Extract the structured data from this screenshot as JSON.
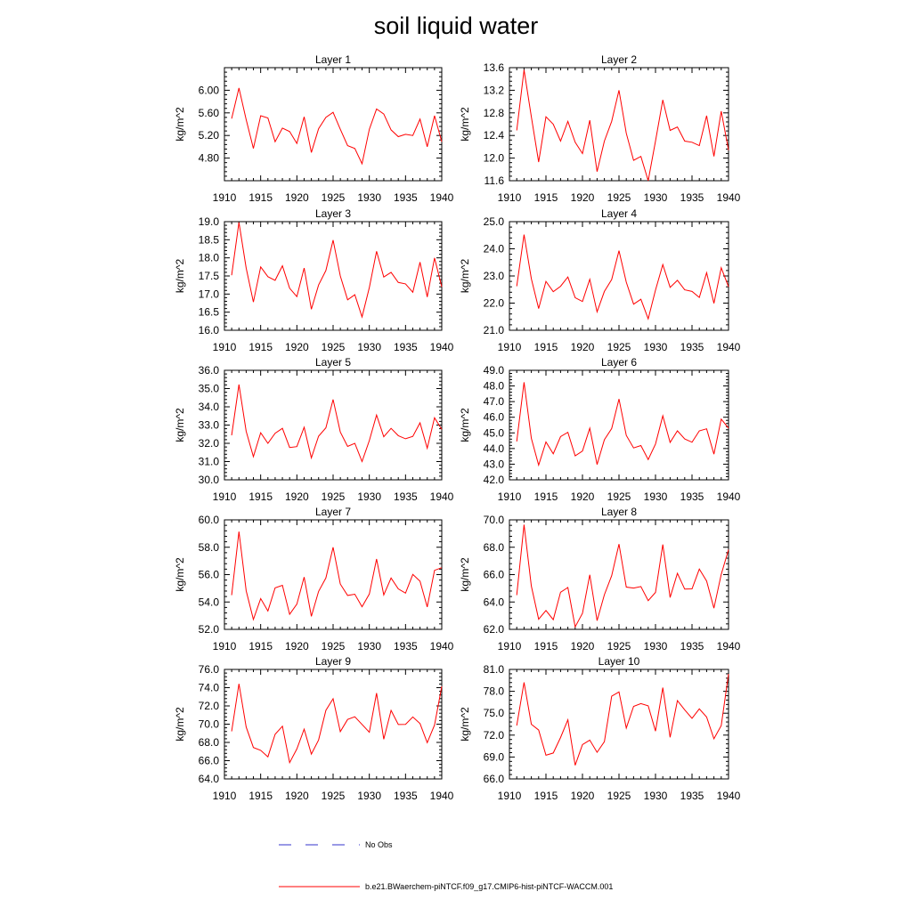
{
  "title": "soil liquid water",
  "legend": {
    "placement": "bottom",
    "entries": [
      {
        "label": "No Obs",
        "color": "#3333cc",
        "style": "dashed"
      },
      {
        "label": "b.e21.BWaerchem-piNTCF.f09_g17.CMIP6-hist-piNTCF-WACCM.001",
        "color": "#ff0000",
        "style": "solid"
      }
    ]
  },
  "chart_data": [
    {
      "type": "line",
      "title": "Layer 1",
      "ylabel": "kg/m^2",
      "xlim": [
        1910,
        1940
      ],
      "ylim": [
        4.4,
        6.4
      ],
      "xticks": [
        "1910",
        "1915",
        "1920",
        "1925",
        "1930",
        "1935",
        "1940"
      ],
      "yticks": [
        "4.80",
        "5.20",
        "5.60",
        "6.00"
      ],
      "ytick_values": [
        4.8,
        5.2,
        5.6,
        6.0
      ],
      "x": [
        1911,
        1912,
        1913,
        1914,
        1915,
        1916,
        1917,
        1918,
        1919,
        1920,
        1921,
        1922,
        1923,
        1924,
        1925,
        1926,
        1927,
        1928,
        1929,
        1930,
        1931,
        1932,
        1933,
        1934,
        1935,
        1936,
        1937,
        1938,
        1939,
        1940
      ],
      "series": [
        {
          "color": "#ff0000",
          "values": [
            5.5,
            6.04,
            5.48,
            4.97,
            5.55,
            5.51,
            5.09,
            5.33,
            5.27,
            5.06,
            5.53,
            4.9,
            5.32,
            5.52,
            5.61,
            5.31,
            5.02,
            4.97,
            4.7,
            5.31,
            5.67,
            5.58,
            5.3,
            5.18,
            5.22,
            5.2,
            5.49,
            5.0,
            5.55,
            5.09
          ]
        }
      ]
    },
    {
      "type": "line",
      "title": "Layer 2",
      "ylabel": "kg/m^2",
      "xlim": [
        1910,
        1940
      ],
      "ylim": [
        11.6,
        13.6
      ],
      "xticks": [
        "1910",
        "1915",
        "1920",
        "1925",
        "1930",
        "1935",
        "1940"
      ],
      "yticks": [
        "11.6",
        "12.0",
        "12.4",
        "12.8",
        "13.2",
        "13.6"
      ],
      "ytick_values": [
        11.6,
        12.0,
        12.4,
        12.8,
        13.2,
        13.6
      ],
      "x": [
        1911,
        1912,
        1913,
        1914,
        1915,
        1916,
        1917,
        1918,
        1919,
        1920,
        1921,
        1922,
        1923,
        1924,
        1925,
        1926,
        1927,
        1928,
        1929,
        1930,
        1931,
        1932,
        1933,
        1934,
        1935,
        1936,
        1937,
        1938,
        1939,
        1940
      ],
      "series": [
        {
          "color": "#ff0000",
          "values": [
            12.49,
            13.56,
            12.73,
            11.93,
            12.73,
            12.6,
            12.3,
            12.65,
            12.28,
            12.08,
            12.67,
            11.76,
            12.3,
            12.65,
            13.2,
            12.44,
            11.96,
            12.03,
            11.6,
            12.3,
            13.03,
            12.49,
            12.55,
            12.3,
            12.28,
            12.22,
            12.75,
            12.03,
            12.83,
            12.14
          ]
        }
      ]
    },
    {
      "type": "line",
      "title": "Layer 3",
      "ylabel": "kg/m^2",
      "xlim": [
        1910,
        1940
      ],
      "ylim": [
        16.0,
        19.0
      ],
      "xticks": [
        "1910",
        "1915",
        "1920",
        "1925",
        "1930",
        "1935",
        "1940"
      ],
      "yticks": [
        "16.0",
        "16.5",
        "17.0",
        "17.5",
        "18.0",
        "18.5",
        "19.0"
      ],
      "ytick_values": [
        16.0,
        16.5,
        17.0,
        17.5,
        18.0,
        18.5,
        19.0
      ],
      "x": [
        1911,
        1912,
        1913,
        1914,
        1915,
        1916,
        1917,
        1918,
        1919,
        1920,
        1921,
        1922,
        1923,
        1924,
        1925,
        1926,
        1927,
        1928,
        1929,
        1930,
        1931,
        1932,
        1933,
        1934,
        1935,
        1936,
        1937,
        1938,
        1939,
        1940
      ],
      "series": [
        {
          "color": "#ff0000",
          "values": [
            17.52,
            18.98,
            17.72,
            16.78,
            17.75,
            17.48,
            17.38,
            17.78,
            17.16,
            16.93,
            17.72,
            16.58,
            17.25,
            17.65,
            18.49,
            17.5,
            16.84,
            16.98,
            16.37,
            17.18,
            18.18,
            17.47,
            17.6,
            17.32,
            17.28,
            17.05,
            17.88,
            16.92,
            18.0,
            17.2
          ]
        }
      ]
    },
    {
      "type": "line",
      "title": "Layer 4",
      "ylabel": "kg/m^2",
      "xlim": [
        1910,
        1940
      ],
      "ylim": [
        21.0,
        25.0
      ],
      "xticks": [
        "1910",
        "1915",
        "1920",
        "1925",
        "1930",
        "1935",
        "1940"
      ],
      "yticks": [
        "21.0",
        "22.0",
        "23.0",
        "24.0",
        "25.0"
      ],
      "ytick_values": [
        21.0,
        22.0,
        23.0,
        24.0,
        25.0
      ],
      "x": [
        1911,
        1912,
        1913,
        1914,
        1915,
        1916,
        1917,
        1918,
        1919,
        1920,
        1921,
        1922,
        1923,
        1924,
        1925,
        1926,
        1927,
        1928,
        1929,
        1930,
        1931,
        1932,
        1933,
        1934,
        1935,
        1936,
        1937,
        1938,
        1939,
        1940
      ],
      "series": [
        {
          "color": "#ff0000",
          "values": [
            22.62,
            24.52,
            22.9,
            21.8,
            22.8,
            22.42,
            22.62,
            22.96,
            22.2,
            22.06,
            22.88,
            21.68,
            22.43,
            22.87,
            23.93,
            22.77,
            21.96,
            22.14,
            21.42,
            22.48,
            23.42,
            22.58,
            22.84,
            22.49,
            22.43,
            22.21,
            23.12,
            21.99,
            23.3,
            22.6
          ]
        }
      ]
    },
    {
      "type": "line",
      "title": "Layer 5",
      "ylabel": "kg/m^2",
      "xlim": [
        1910,
        1940
      ],
      "ylim": [
        30.0,
        36.0
      ],
      "xticks": [
        "1910",
        "1915",
        "1920",
        "1925",
        "1930",
        "1935",
        "1940"
      ],
      "yticks": [
        "30.0",
        "31.0",
        "32.0",
        "33.0",
        "34.0",
        "35.0",
        "36.0"
      ],
      "ytick_values": [
        30.0,
        31.0,
        32.0,
        33.0,
        34.0,
        35.0,
        36.0
      ],
      "x": [
        1911,
        1912,
        1913,
        1914,
        1915,
        1916,
        1917,
        1918,
        1919,
        1920,
        1921,
        1922,
        1923,
        1924,
        1925,
        1926,
        1927,
        1928,
        1929,
        1930,
        1931,
        1932,
        1933,
        1934,
        1935,
        1936,
        1937,
        1938,
        1939,
        1940
      ],
      "series": [
        {
          "color": "#ff0000",
          "values": [
            32.44,
            35.22,
            32.66,
            31.27,
            32.58,
            32.0,
            32.55,
            32.82,
            31.77,
            31.82,
            32.88,
            31.2,
            32.39,
            32.85,
            34.4,
            32.62,
            31.83,
            32.0,
            31.0,
            32.15,
            33.55,
            32.36,
            32.82,
            32.42,
            32.25,
            32.38,
            33.12,
            31.73,
            33.4,
            32.76
          ]
        }
      ]
    },
    {
      "type": "line",
      "title": "Layer 6",
      "ylabel": "kg/m^2",
      "xlim": [
        1910,
        1940
      ],
      "ylim": [
        42.0,
        49.0
      ],
      "xticks": [
        "1910",
        "1915",
        "1920",
        "1925",
        "1930",
        "1935",
        "1940"
      ],
      "yticks": [
        "42.0",
        "43.0",
        "44.0",
        "45.0",
        "46.0",
        "47.0",
        "48.0",
        "49.0"
      ],
      "ytick_values": [
        42.0,
        43.0,
        44.0,
        45.0,
        46.0,
        47.0,
        48.0,
        49.0
      ],
      "x": [
        1911,
        1912,
        1913,
        1914,
        1915,
        1916,
        1917,
        1918,
        1919,
        1920,
        1921,
        1922,
        1923,
        1924,
        1925,
        1926,
        1927,
        1928,
        1929,
        1930,
        1931,
        1932,
        1933,
        1934,
        1935,
        1936,
        1937,
        1938,
        1939,
        1940
      ],
      "series": [
        {
          "color": "#ff0000",
          "values": [
            44.45,
            48.24,
            44.65,
            42.94,
            44.42,
            43.66,
            44.76,
            45.04,
            43.53,
            43.84,
            45.3,
            42.98,
            44.56,
            45.28,
            47.17,
            44.84,
            44.04,
            44.19,
            43.3,
            44.29,
            46.09,
            44.39,
            45.13,
            44.61,
            44.4,
            45.13,
            45.26,
            43.64,
            45.88,
            45.3
          ]
        }
      ]
    },
    {
      "type": "line",
      "title": "Layer 7",
      "ylabel": "kg/m^2",
      "xlim": [
        1910,
        1940
      ],
      "ylim": [
        52.0,
        60.0
      ],
      "xticks": [
        "1910",
        "1915",
        "1920",
        "1925",
        "1930",
        "1935",
        "1940"
      ],
      "yticks": [
        "52.0",
        "54.0",
        "56.0",
        "58.0",
        "60.0"
      ],
      "ytick_values": [
        52.0,
        54.0,
        56.0,
        58.0,
        60.0
      ],
      "x": [
        1911,
        1912,
        1913,
        1914,
        1915,
        1916,
        1917,
        1918,
        1919,
        1920,
        1921,
        1922,
        1923,
        1924,
        1925,
        1926,
        1927,
        1928,
        1929,
        1930,
        1931,
        1932,
        1933,
        1934,
        1935,
        1936,
        1937,
        1938,
        1939,
        1940
      ],
      "series": [
        {
          "color": "#ff0000",
          "values": [
            54.5,
            59.14,
            54.82,
            52.72,
            54.25,
            53.34,
            55.03,
            55.22,
            53.1,
            53.84,
            55.82,
            52.95,
            54.77,
            55.75,
            58.0,
            55.31,
            54.48,
            54.57,
            53.65,
            54.58,
            57.14,
            54.52,
            55.75,
            54.96,
            54.65,
            56.01,
            55.52,
            53.63,
            56.31,
            56.51
          ]
        }
      ]
    },
    {
      "type": "line",
      "title": "Layer 8",
      "ylabel": "kg/m^2",
      "xlim": [
        1910,
        1940
      ],
      "ylim": [
        62.0,
        70.0
      ],
      "xticks": [
        "1910",
        "1915",
        "1920",
        "1925",
        "1930",
        "1935",
        "1940"
      ],
      "yticks": [
        "62.0",
        "64.0",
        "66.0",
        "68.0",
        "70.0"
      ],
      "ytick_values": [
        62.0,
        64.0,
        66.0,
        68.0,
        70.0
      ],
      "x": [
        1911,
        1912,
        1913,
        1914,
        1915,
        1916,
        1917,
        1918,
        1919,
        1920,
        1921,
        1922,
        1923,
        1924,
        1925,
        1926,
        1927,
        1928,
        1929,
        1930,
        1931,
        1932,
        1933,
        1934,
        1935,
        1936,
        1937,
        1938,
        1939,
        1940
      ],
      "series": [
        {
          "color": "#ff0000",
          "values": [
            64.5,
            69.65,
            65.16,
            62.74,
            63.38,
            62.71,
            64.71,
            65.06,
            62.18,
            63.17,
            65.99,
            62.64,
            64.53,
            65.92,
            68.23,
            65.09,
            65.02,
            65.13,
            64.1,
            64.7,
            68.2,
            64.33,
            66.1,
            64.94,
            64.96,
            66.4,
            65.53,
            63.55,
            66.02,
            67.82
          ]
        }
      ]
    },
    {
      "type": "line",
      "title": "Layer 9",
      "ylabel": "kg/m^2",
      "xlim": [
        1910,
        1940
      ],
      "ylim": [
        64.0,
        76.0
      ],
      "xticks": [
        "1910",
        "1915",
        "1920",
        "1925",
        "1930",
        "1935",
        "1940"
      ],
      "yticks": [
        "64.0",
        "66.0",
        "68.0",
        "70.0",
        "72.0",
        "74.0",
        "76.0"
      ],
      "ytick_values": [
        64.0,
        66.0,
        68.0,
        70.0,
        72.0,
        74.0,
        76.0
      ],
      "x": [
        1911,
        1912,
        1913,
        1914,
        1915,
        1916,
        1917,
        1918,
        1919,
        1920,
        1921,
        1922,
        1923,
        1924,
        1925,
        1926,
        1927,
        1928,
        1929,
        1930,
        1931,
        1932,
        1933,
        1934,
        1935,
        1936,
        1937,
        1938,
        1939,
        1940
      ],
      "series": [
        {
          "color": "#ff0000",
          "values": [
            69.21,
            74.42,
            69.69,
            67.44,
            67.13,
            66.42,
            68.89,
            69.78,
            65.79,
            67.28,
            69.45,
            66.72,
            68.26,
            71.51,
            72.79,
            69.18,
            70.52,
            70.81,
            69.97,
            69.11,
            73.4,
            68.35,
            71.51,
            69.96,
            69.98,
            70.79,
            70.07,
            67.97,
            69.9,
            74.14
          ]
        }
      ]
    },
    {
      "type": "line",
      "title": "Layer 10",
      "ylabel": "kg/m^2",
      "xlim": [
        1910,
        1940
      ],
      "ylim": [
        66.0,
        81.0
      ],
      "xticks": [
        "1910",
        "1915",
        "1920",
        "1925",
        "1930",
        "1935",
        "1940"
      ],
      "yticks": [
        "66.0",
        "69.0",
        "72.0",
        "75.0",
        "78.0",
        "81.0"
      ],
      "ytick_values": [
        66.0,
        69.0,
        72.0,
        75.0,
        78.0,
        81.0
      ],
      "x": [
        1911,
        1912,
        1913,
        1914,
        1915,
        1916,
        1917,
        1918,
        1919,
        1920,
        1921,
        1922,
        1923,
        1924,
        1925,
        1926,
        1927,
        1928,
        1929,
        1930,
        1931,
        1932,
        1933,
        1934,
        1935,
        1936,
        1937,
        1938,
        1939,
        1940
      ],
      "series": [
        {
          "color": "#ff0000",
          "values": [
            73.3,
            79.22,
            73.49,
            72.69,
            69.24,
            69.55,
            71.67,
            74.1,
            67.87,
            70.7,
            71.32,
            69.65,
            71.1,
            77.33,
            77.91,
            72.96,
            75.94,
            76.32,
            76.01,
            72.55,
            78.5,
            71.69,
            76.73,
            75.46,
            74.31,
            75.6,
            74.48,
            71.5,
            73.3,
            80.38
          ]
        }
      ]
    }
  ]
}
